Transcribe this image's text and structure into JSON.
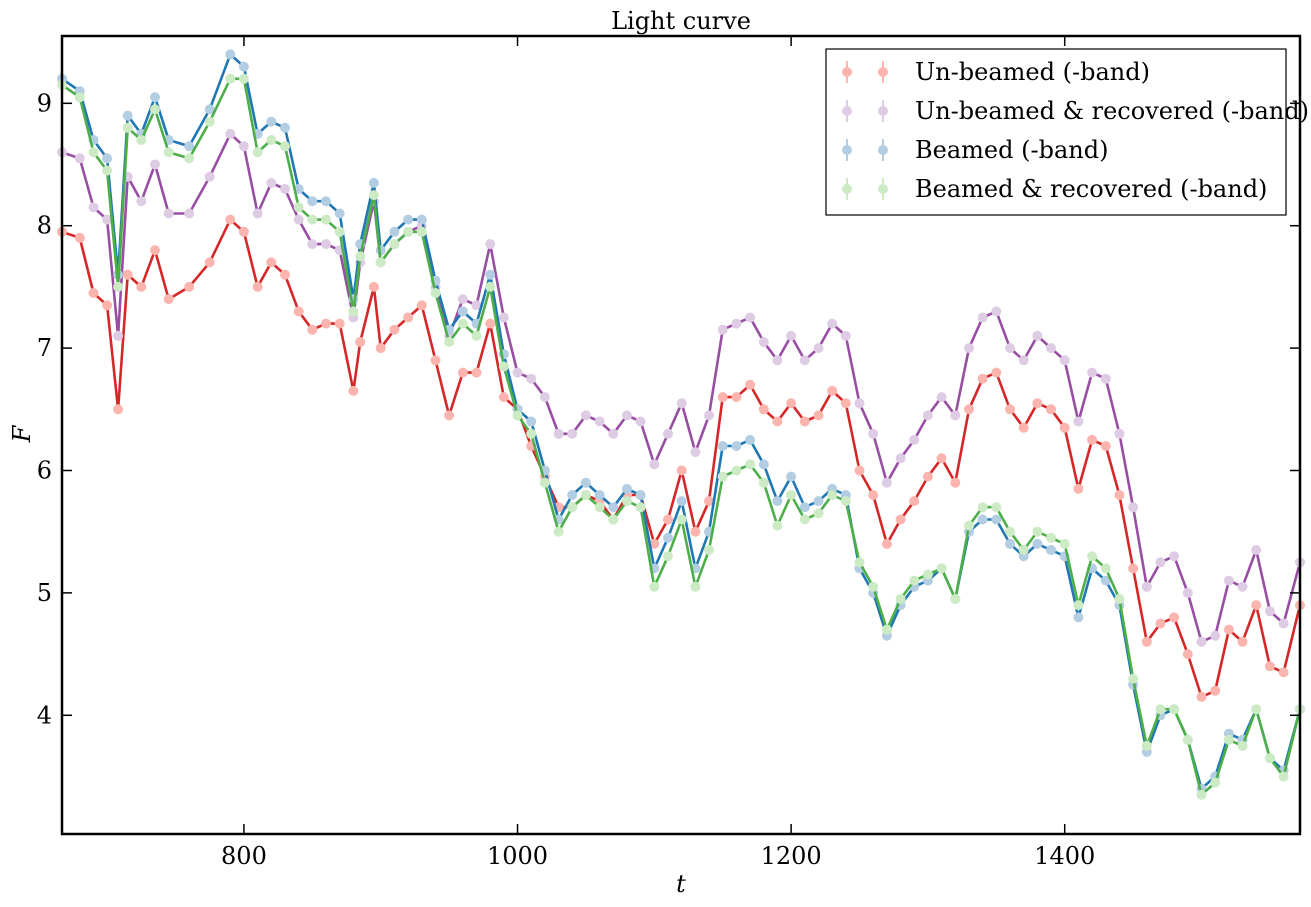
{
  "chart_data": {
    "type": "line",
    "title": "Light curve",
    "xlabel": "t",
    "ylabel": "F",
    "xlim": [
      667,
      1572
    ],
    "ylim": [
      3.03,
      9.55
    ],
    "x_ticks": [
      800,
      1000,
      1200,
      1400
    ],
    "y_ticks": [
      4,
      5,
      6,
      7,
      8,
      9
    ],
    "legend_position": "top-right",
    "grid": false,
    "series": [
      {
        "name": "Un-beamed (-band)",
        "line_color": "#d62728",
        "marker_color": "#fbb4ae",
        "x": [
          667,
          680,
          690,
          700,
          708,
          715,
          725,
          735,
          745,
          760,
          775,
          790,
          800,
          810,
          820,
          830,
          840,
          850,
          860,
          870,
          880,
          885,
          895,
          900,
          910,
          920,
          930,
          940,
          950,
          960,
          970,
          980,
          990,
          1000,
          1010,
          1020,
          1030,
          1040,
          1050,
          1060,
          1070,
          1080,
          1090,
          1100,
          1110,
          1120,
          1130,
          1140,
          1150,
          1160,
          1170,
          1180,
          1190,
          1200,
          1210,
          1220,
          1230,
          1240,
          1250,
          1260,
          1270,
          1280,
          1290,
          1300,
          1310,
          1320,
          1330,
          1340,
          1350,
          1360,
          1370,
          1380,
          1390,
          1400,
          1410,
          1420,
          1430,
          1440,
          1450,
          1460,
          1470,
          1480,
          1490,
          1500,
          1510,
          1520,
          1530,
          1540,
          1550,
          1560,
          1572
        ],
        "y": [
          7.95,
          7.9,
          7.45,
          7.35,
          6.5,
          7.6,
          7.5,
          7.8,
          7.4,
          7.5,
          7.7,
          8.05,
          7.95,
          7.5,
          7.7,
          7.6,
          7.3,
          7.15,
          7.2,
          7.2,
          6.65,
          7.05,
          7.5,
          7.0,
          7.15,
          7.25,
          7.35,
          6.9,
          6.45,
          6.8,
          6.8,
          7.2,
          6.6,
          6.5,
          6.2,
          5.95,
          5.7,
          5.7,
          5.8,
          5.75,
          5.6,
          5.8,
          5.8,
          5.4,
          5.6,
          6.0,
          5.5,
          5.75,
          6.6,
          6.6,
          6.7,
          6.5,
          6.4,
          6.55,
          6.4,
          6.45,
          6.65,
          6.55,
          6.0,
          5.8,
          5.4,
          5.6,
          5.75,
          5.95,
          6.1,
          5.9,
          6.5,
          6.75,
          6.8,
          6.5,
          6.35,
          6.55,
          6.5,
          6.35,
          5.85,
          6.25,
          6.2,
          5.8,
          5.2,
          4.6,
          4.75,
          4.8,
          4.5,
          4.15,
          4.2,
          4.7,
          4.6,
          4.9,
          4.4,
          4.35,
          4.9
        ]
      },
      {
        "name": "Un-beamed & recovered (-band)",
        "line_color": "#984ea3",
        "marker_color": "#decbe4",
        "x": [
          667,
          680,
          690,
          700,
          708,
          715,
          725,
          735,
          745,
          760,
          775,
          790,
          800,
          810,
          820,
          830,
          840,
          850,
          860,
          870,
          880,
          885,
          895,
          900,
          910,
          920,
          930,
          940,
          950,
          960,
          970,
          980,
          990,
          1000,
          1010,
          1020,
          1030,
          1040,
          1050,
          1060,
          1070,
          1080,
          1090,
          1100,
          1110,
          1120,
          1130,
          1140,
          1150,
          1160,
          1170,
          1180,
          1190,
          1200,
          1210,
          1220,
          1230,
          1240,
          1250,
          1260,
          1270,
          1280,
          1290,
          1300,
          1310,
          1320,
          1330,
          1340,
          1350,
          1360,
          1370,
          1380,
          1390,
          1400,
          1410,
          1420,
          1430,
          1440,
          1450,
          1460,
          1470,
          1480,
          1490,
          1500,
          1510,
          1520,
          1530,
          1540,
          1550,
          1560,
          1572
        ],
        "y": [
          8.6,
          8.55,
          8.15,
          8.05,
          7.1,
          8.4,
          8.2,
          8.5,
          8.1,
          8.1,
          8.4,
          8.75,
          8.65,
          8.1,
          8.35,
          8.3,
          8.05,
          7.85,
          7.85,
          7.8,
          7.25,
          7.7,
          8.2,
          7.7,
          7.85,
          7.95,
          8.0,
          7.5,
          7.1,
          7.4,
          7.35,
          7.85,
          7.25,
          6.8,
          6.75,
          6.6,
          6.3,
          6.3,
          6.45,
          6.4,
          6.3,
          6.45,
          6.4,
          6.05,
          6.3,
          6.55,
          6.15,
          6.45,
          7.15,
          7.2,
          7.25,
          7.05,
          6.9,
          7.1,
          6.9,
          7.0,
          7.2,
          7.1,
          6.55,
          6.3,
          5.9,
          6.1,
          6.25,
          6.45,
          6.6,
          6.45,
          7.0,
          7.25,
          7.3,
          7.0,
          6.9,
          7.1,
          7.0,
          6.9,
          6.4,
          6.8,
          6.75,
          6.3,
          5.7,
          5.05,
          5.25,
          5.3,
          5.0,
          4.6,
          4.65,
          5.1,
          5.05,
          5.35,
          4.85,
          4.75,
          5.25
        ]
      },
      {
        "name": "Beamed (-band)",
        "line_color": "#1f78b4",
        "marker_color": "#b3cde3",
        "x": [
          667,
          680,
          690,
          700,
          708,
          715,
          725,
          735,
          745,
          760,
          775,
          790,
          800,
          810,
          820,
          830,
          840,
          850,
          860,
          870,
          880,
          885,
          895,
          900,
          910,
          920,
          930,
          940,
          950,
          960,
          970,
          980,
          990,
          1000,
          1010,
          1020,
          1030,
          1040,
          1050,
          1060,
          1070,
          1080,
          1090,
          1100,
          1110,
          1120,
          1130,
          1140,
          1150,
          1160,
          1170,
          1180,
          1190,
          1200,
          1210,
          1220,
          1230,
          1240,
          1250,
          1260,
          1270,
          1280,
          1290,
          1300,
          1310,
          1320,
          1330,
          1340,
          1350,
          1360,
          1370,
          1380,
          1390,
          1400,
          1410,
          1420,
          1430,
          1440,
          1450,
          1460,
          1470,
          1480,
          1490,
          1500,
          1510,
          1520,
          1530,
          1540,
          1550,
          1560,
          1572
        ],
        "y": [
          9.2,
          9.1,
          8.7,
          8.55,
          7.6,
          8.9,
          8.75,
          9.05,
          8.7,
          8.65,
          8.95,
          9.4,
          9.3,
          8.75,
          8.85,
          8.8,
          8.3,
          8.2,
          8.2,
          8.1,
          7.4,
          7.85,
          8.35,
          7.8,
          7.95,
          8.05,
          8.05,
          7.55,
          7.15,
          7.3,
          7.2,
          7.6,
          6.95,
          6.5,
          6.4,
          6.0,
          5.6,
          5.8,
          5.9,
          5.8,
          5.7,
          5.85,
          5.8,
          5.2,
          5.45,
          5.75,
          5.2,
          5.5,
          6.2,
          6.2,
          6.25,
          6.05,
          5.75,
          5.95,
          5.7,
          5.75,
          5.85,
          5.8,
          5.2,
          5.0,
          4.65,
          4.9,
          5.05,
          5.1,
          5.2,
          4.95,
          5.5,
          5.6,
          5.6,
          5.4,
          5.3,
          5.4,
          5.35,
          5.3,
          4.8,
          5.2,
          5.1,
          4.9,
          4.25,
          3.7,
          4.0,
          4.05,
          3.8,
          3.4,
          3.5,
          3.85,
          3.8,
          4.05,
          3.65,
          3.55,
          4.05
        ]
      },
      {
        "name": "Beamed & recovered (-band)",
        "line_color": "#4daf4a",
        "marker_color": "#ccebc5",
        "x": [
          667,
          680,
          690,
          700,
          708,
          715,
          725,
          735,
          745,
          760,
          775,
          790,
          800,
          810,
          820,
          830,
          840,
          850,
          860,
          870,
          880,
          885,
          895,
          900,
          910,
          920,
          930,
          940,
          950,
          960,
          970,
          980,
          990,
          1000,
          1010,
          1020,
          1030,
          1040,
          1050,
          1060,
          1070,
          1080,
          1090,
          1100,
          1110,
          1120,
          1130,
          1140,
          1150,
          1160,
          1170,
          1180,
          1190,
          1200,
          1210,
          1220,
          1230,
          1240,
          1250,
          1260,
          1270,
          1280,
          1290,
          1300,
          1310,
          1320,
          1330,
          1340,
          1350,
          1360,
          1370,
          1380,
          1390,
          1400,
          1410,
          1420,
          1430,
          1440,
          1450,
          1460,
          1470,
          1480,
          1490,
          1500,
          1510,
          1520,
          1530,
          1540,
          1550,
          1560,
          1572
        ],
        "y": [
          9.15,
          9.05,
          8.6,
          8.45,
          7.5,
          8.8,
          8.7,
          8.95,
          8.6,
          8.55,
          8.85,
          9.2,
          9.2,
          8.6,
          8.7,
          8.65,
          8.15,
          8.05,
          8.05,
          7.95,
          7.3,
          7.75,
          8.25,
          7.7,
          7.85,
          7.95,
          7.95,
          7.45,
          7.05,
          7.2,
          7.1,
          7.5,
          6.85,
          6.45,
          6.3,
          5.9,
          5.5,
          5.7,
          5.8,
          5.7,
          5.6,
          5.75,
          5.7,
          5.05,
          5.3,
          5.6,
          5.05,
          5.35,
          5.95,
          6.0,
          6.05,
          5.9,
          5.55,
          5.8,
          5.6,
          5.65,
          5.8,
          5.75,
          5.25,
          5.05,
          4.7,
          4.95,
          5.1,
          5.15,
          5.2,
          4.95,
          5.55,
          5.7,
          5.7,
          5.5,
          5.35,
          5.5,
          5.45,
          5.4,
          4.9,
          5.3,
          5.2,
          4.95,
          4.3,
          3.75,
          4.05,
          4.05,
          3.8,
          3.35,
          3.45,
          3.8,
          3.75,
          4.05,
          3.65,
          3.5,
          4.05
        ]
      }
    ]
  }
}
